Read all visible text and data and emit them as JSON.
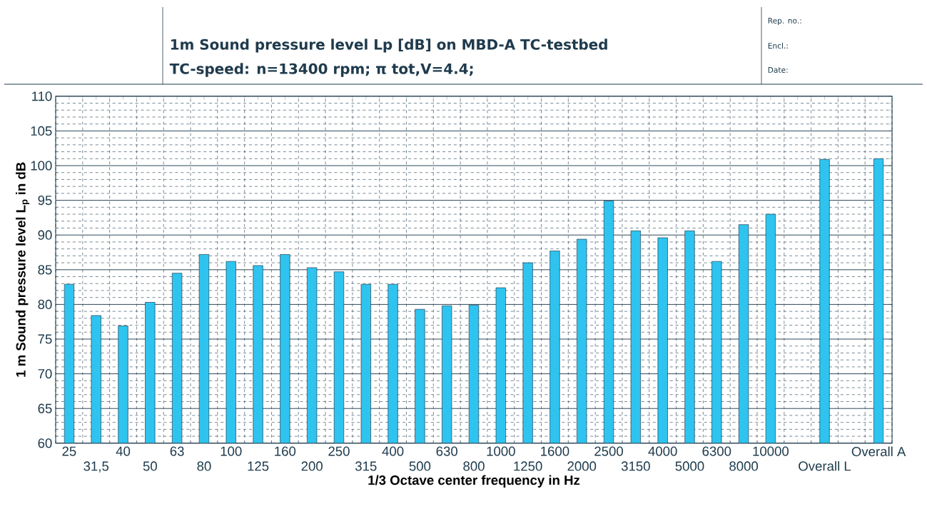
{
  "chart_data": {
    "type": "bar",
    "title": "1m Sound pressure level Lp [dB] on MBD-A TC-testbed",
    "subtitle": "TC-speed: n=13400 rpm; π tot,V=4.4;",
    "annotations": [
      "Rep. no.:",
      "Encl.:",
      "Date:"
    ],
    "xlabel": "1/3 Octave center frequency in Hz",
    "ylabel": "1 m Sound pressure level L$_{p}$ in dB",
    "categories": [
      "25",
      "31,5",
      "40",
      "50",
      "63",
      "80",
      "100",
      "125",
      "160",
      "200",
      "250",
      "315",
      "400",
      "500",
      "630",
      "800",
      "1000",
      "1250",
      "1600",
      "2000",
      "2500",
      "3150",
      "4000",
      "5000",
      "6300",
      "8000",
      "10000",
      null,
      "Overall L",
      null,
      "Overall A"
    ],
    "values": [
      82.9,
      78.4,
      76.9,
      80.3,
      84.5,
      87.2,
      86.2,
      85.6,
      87.2,
      85.3,
      84.7,
      82.9,
      82.9,
      79.3,
      79.8,
      79.9,
      82.4,
      86.0,
      87.7,
      89.4,
      94.9,
      90.6,
      89.6,
      90.6,
      86.2,
      91.5,
      93.0,
      null,
      100.9,
      null,
      101.0
    ],
    "color": "#2ec4ef",
    "ylim": [
      60,
      110
    ],
    "yticks": [
      60,
      65,
      70,
      75,
      80,
      85,
      90,
      95,
      100,
      105,
      110
    ],
    "grid": true
  }
}
